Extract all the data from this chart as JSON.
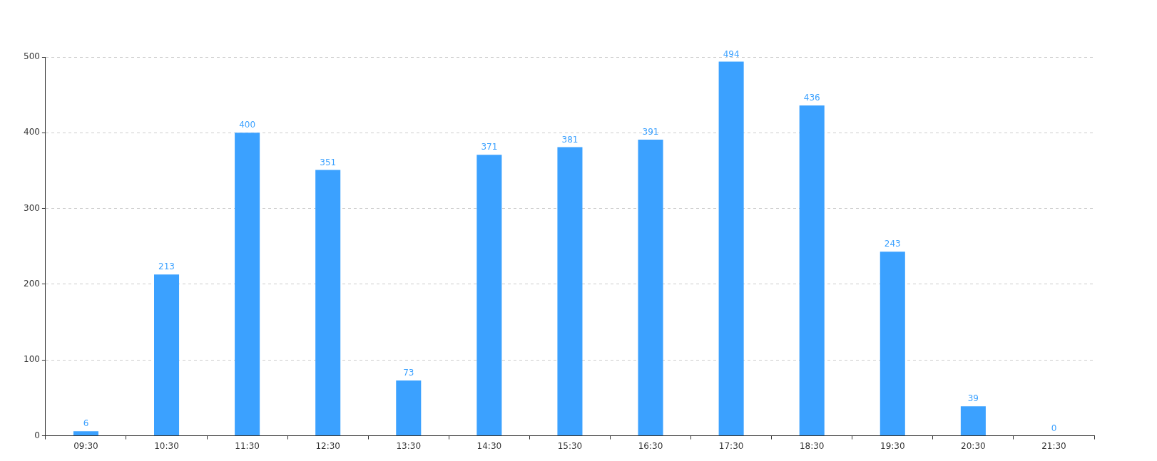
{
  "chart_data": {
    "type": "bar",
    "categories": [
      "09:30",
      "10:30",
      "11:30",
      "12:30",
      "13:30",
      "14:30",
      "15:30",
      "16:30",
      "17:30",
      "18:30",
      "19:30",
      "20:30",
      "21:30"
    ],
    "values": [
      6,
      213,
      400,
      351,
      73,
      371,
      381,
      391,
      494,
      436,
      243,
      39,
      0
    ],
    "color": "#3ba1ff",
    "ylim": [
      0,
      500
    ],
    "yticks": [
      0,
      100,
      200,
      300,
      400,
      500
    ],
    "grid": "y",
    "data_labels": true,
    "legend": false
  }
}
